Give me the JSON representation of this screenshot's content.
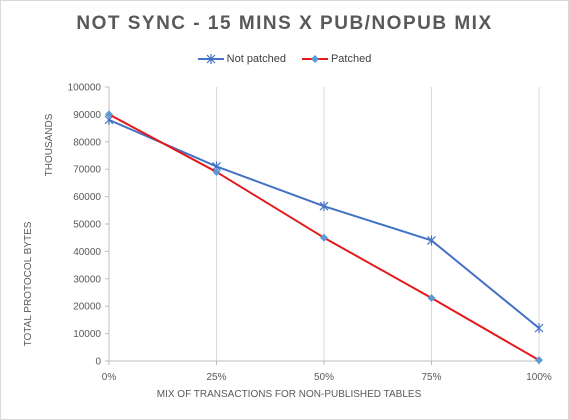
{
  "chart_data": {
    "type": "line",
    "title": "NOT SYNC - 15 MINS X PUB/NOPUB MIX",
    "categories": [
      "0%",
      "25%",
      "50%",
      "75%",
      "100%"
    ],
    "series": [
      {
        "name": "Not patched",
        "values": [
          88000,
          71000,
          56500,
          44000,
          12000
        ],
        "color": "#4472C4",
        "marker": "x-star"
      },
      {
        "name": "Patched",
        "values": [
          90000,
          69000,
          45000,
          23000,
          300
        ],
        "color": "#E31A1C",
        "marker": "diamond"
      }
    ],
    "xlabel": "MIX OF TRANSACTIONS FOR NON-PUBLISHED TABLES",
    "ylabel": "TOTAL PROTOCOL BYTES",
    "yunit": "THOUSANDS",
    "ylim": [
      0,
      100000
    ],
    "yticks": [
      0,
      10000,
      20000,
      30000,
      40000,
      50000,
      60000,
      70000,
      80000,
      90000,
      100000
    ],
    "grid": "vertical",
    "legend_position": "top"
  }
}
